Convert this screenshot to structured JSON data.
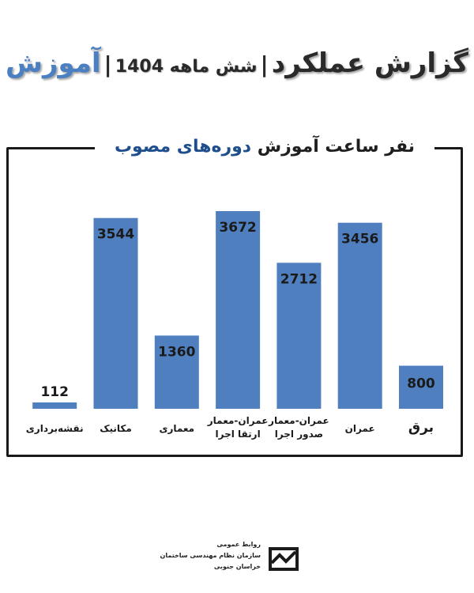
{
  "header": {
    "title": "گزارش عملکرد",
    "separator": "|",
    "subtitle": "شش ماهه 1404",
    "section": "آموزش"
  },
  "chart_data": {
    "type": "bar",
    "title_part1": "نفر ساعت آموزش",
    "title_part2": "دوره‌های مصوب",
    "categories": [
      "برق",
      "عمران",
      "عمران-معمار صدور اجرا",
      "عمران-معمار ارتقا اجرا",
      "معماری",
      "مکانیک",
      "نقشه‌برداری"
    ],
    "values": [
      800,
      3456,
      2712,
      3672,
      1360,
      3544,
      112
    ],
    "bar_color": "#4f7fbf",
    "grid": false
  },
  "footer": {
    "line1": "روابط عمومی",
    "line2": "سازمان نظام مهندسی ساختمان",
    "line3": "خراسان جنوبی"
  }
}
